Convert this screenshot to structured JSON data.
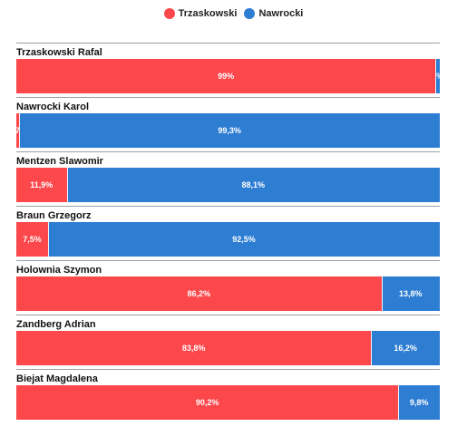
{
  "legend": [
    {
      "name": "Trzaskowski",
      "color": "#fc474b"
    },
    {
      "name": "Nawrocki",
      "color": "#2d7dd2"
    }
  ],
  "chart_data": {
    "type": "bar",
    "orientation": "horizontal",
    "stacked": "100%",
    "legend_position": "top-center",
    "categories": [
      "Trzaskowski Rafal",
      "Nawrocki Karol",
      "Mentzen Slawomir",
      "Braun Grzegorz",
      "Holownia Szymon",
      "Zandberg Adrian",
      "Biejat Magdalena"
    ],
    "series": [
      {
        "name": "Trzaskowski",
        "color": "#fc474b",
        "values": [
          99,
          0.7,
          11.9,
          7.5,
          86.2,
          83.8,
          90.2
        ],
        "labels": [
          "99%",
          "0,7%",
          "11,9%",
          "7,5%",
          "86,2%",
          "83,8%",
          "90,2%"
        ]
      },
      {
        "name": "Nawrocki",
        "color": "#2d7dd2",
        "values": [
          1,
          99.3,
          88.1,
          92.5,
          13.8,
          16.2,
          9.8
        ],
        "labels": [
          "1%",
          "99,3%",
          "88,1%",
          "92,5%",
          "13,8%",
          "16,2%",
          "9,8%"
        ]
      }
    ]
  }
}
